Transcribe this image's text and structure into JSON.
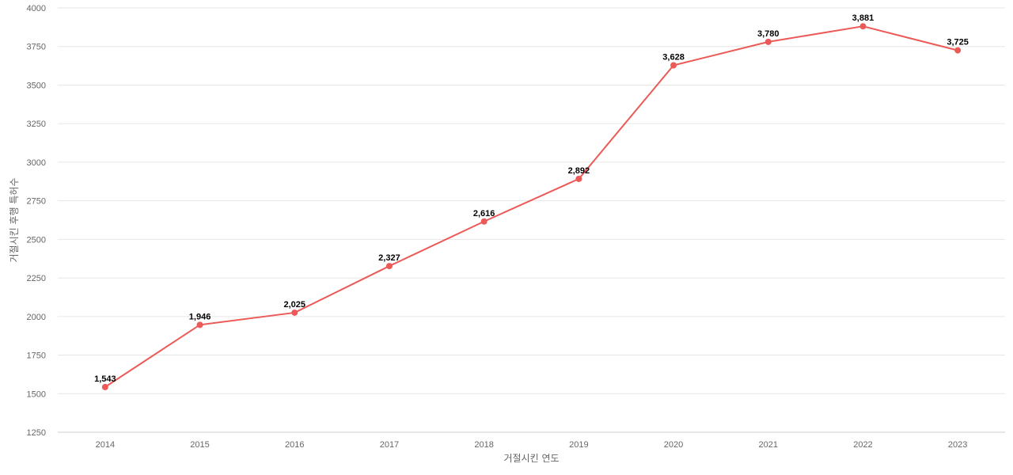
{
  "chart_data": {
    "type": "line",
    "title": "",
    "xlabel": "거절시킨 연도",
    "ylabel": "거절시킨 후행 특허수",
    "x": [
      "2014",
      "2015",
      "2016",
      "2017",
      "2018",
      "2019",
      "2020",
      "2021",
      "2022",
      "2023"
    ],
    "series": [
      {
        "values": [
          1543,
          1946,
          2025,
          2327,
          2616,
          2892,
          3628,
          3780,
          3881,
          3725
        ],
        "labels": [
          "1,543",
          "1,946",
          "2,025",
          "2,327",
          "2,616",
          "2,892",
          "3,628",
          "3,780",
          "3,881",
          "3,725"
        ],
        "color": "#eb5a57"
      }
    ],
    "ylim": [
      1250,
      4000
    ],
    "yticks": [
      "1250",
      "1500",
      "1750",
      "2000",
      "2250",
      "2500",
      "2750",
      "3000",
      "3250",
      "3500",
      "3750",
      "4000"
    ],
    "grid": true,
    "legend": "none"
  }
}
